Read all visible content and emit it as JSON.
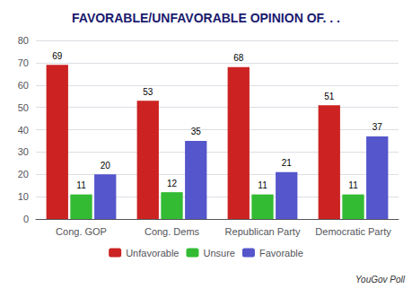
{
  "chart_data": {
    "type": "bar",
    "title": "FAVORABLE/UNFAVORABLE OPINION OF. . .",
    "categories": [
      "Cong. GOP",
      "Cong. Dems",
      "Republican Party",
      "Democratic Party"
    ],
    "series": [
      {
        "name": "Unfavorable",
        "color": "#cc2222",
        "values": [
          69,
          53,
          68,
          51
        ]
      },
      {
        "name": "Unsure",
        "color": "#33bb33",
        "values": [
          11,
          12,
          11,
          11
        ]
      },
      {
        "name": "Favorable",
        "color": "#5555cc",
        "values": [
          20,
          35,
          21,
          37
        ]
      }
    ],
    "ylim": [
      0,
      80
    ],
    "yticks": [
      0,
      10,
      20,
      30,
      40,
      50,
      60,
      70,
      80
    ],
    "grid": true,
    "legend": "bottom",
    "data_labels": true,
    "annotation": "YouGov Poll"
  }
}
